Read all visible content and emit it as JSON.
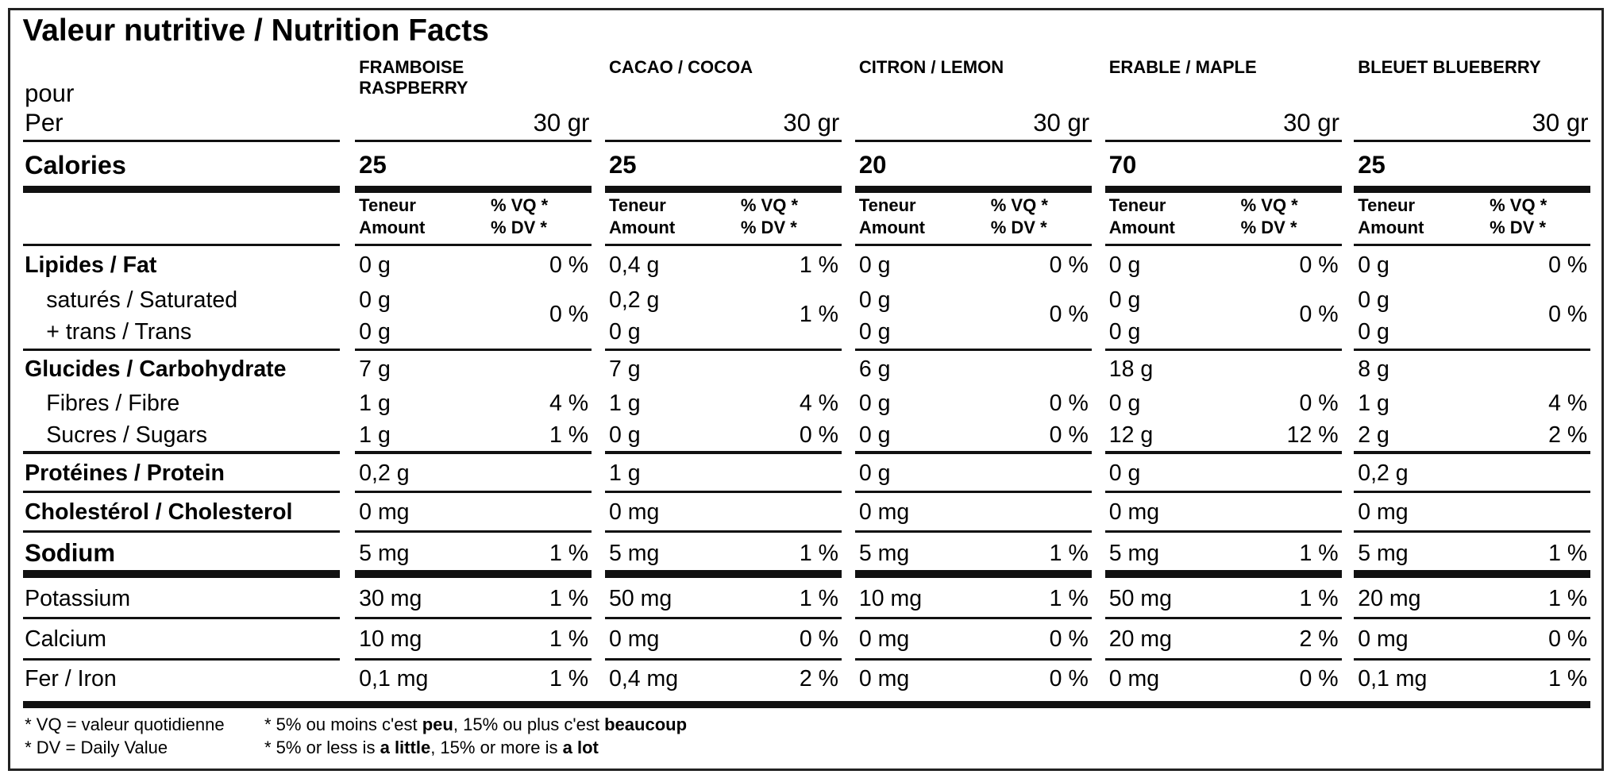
{
  "title": "Valeur nutritive / Nutrition Facts",
  "serving_label": [
    "pour",
    "Per"
  ],
  "calories_label": "Calories",
  "column_header": {
    "amount": [
      "Teneur",
      "Amount"
    ],
    "dv": [
      "% VQ *",
      "% DV *"
    ]
  },
  "columns": [
    {
      "name": [
        "FRAMBOISE",
        "RASPBERRY"
      ],
      "serving_size": "30 gr",
      "calories": "25"
    },
    {
      "name": [
        "CACAO / COCOA"
      ],
      "serving_size": "30 gr",
      "calories": "25"
    },
    {
      "name": [
        "CITRON / LEMON"
      ],
      "serving_size": "30 gr",
      "calories": "20"
    },
    {
      "name": [
        "ERABLE / MAPLE"
      ],
      "serving_size": "30 gr",
      "calories": "70"
    },
    {
      "name": [
        "BLEUET BLUEBERRY"
      ],
      "serving_size": "30 gr",
      "calories": "25"
    }
  ],
  "rows": [
    {
      "label": [
        "Lipides / Fat"
      ],
      "cells": [
        {
          "amount": [
            "0 g"
          ],
          "dv": "0 %"
        },
        {
          "amount": [
            "0,4 g"
          ],
          "dv": "1 %"
        },
        {
          "amount": [
            "0 g"
          ],
          "dv": "0 %"
        },
        {
          "amount": [
            "0 g"
          ],
          "dv": "0 %"
        },
        {
          "amount": [
            "0 g"
          ],
          "dv": "0 %"
        }
      ]
    },
    {
      "label": [
        "saturés / Saturated",
        "+ trans / Trans"
      ],
      "cells": [
        {
          "amount": [
            "0 g",
            "0 g"
          ],
          "dv": "0 %"
        },
        {
          "amount": [
            "0,2 g",
            "0 g"
          ],
          "dv": "1 %"
        },
        {
          "amount": [
            "0 g",
            "0 g"
          ],
          "dv": "0 %"
        },
        {
          "amount": [
            "0 g",
            "0 g"
          ],
          "dv": "0 %"
        },
        {
          "amount": [
            "0 g",
            "0 g"
          ],
          "dv": "0 %"
        }
      ]
    },
    {
      "label": [
        "Glucides / Carbohydrate"
      ],
      "cells": [
        {
          "amount": [
            "7 g"
          ]
        },
        {
          "amount": [
            "7 g"
          ]
        },
        {
          "amount": [
            "6 g"
          ]
        },
        {
          "amount": [
            "18 g"
          ]
        },
        {
          "amount": [
            "8 g"
          ]
        }
      ]
    },
    {
      "label": [
        "Fibres / Fibre"
      ],
      "cells": [
        {
          "amount": [
            "1 g"
          ],
          "dv": "4 %"
        },
        {
          "amount": [
            "1 g"
          ],
          "dv": "4 %"
        },
        {
          "amount": [
            "0 g"
          ],
          "dv": "0 %"
        },
        {
          "amount": [
            "0 g"
          ],
          "dv": "0 %"
        },
        {
          "amount": [
            "1 g"
          ],
          "dv": "4 %"
        }
      ]
    },
    {
      "label": [
        "Sucres / Sugars"
      ],
      "cells": [
        {
          "amount": [
            "1 g"
          ],
          "dv": "1 %"
        },
        {
          "amount": [
            "0 g"
          ],
          "dv": "0 %"
        },
        {
          "amount": [
            "0 g"
          ],
          "dv": "0 %"
        },
        {
          "amount": [
            "12 g"
          ],
          "dv": "12 %"
        },
        {
          "amount": [
            "2 g"
          ],
          "dv": "2 %"
        }
      ]
    },
    {
      "label": [
        "Protéines / Protein"
      ],
      "cells": [
        {
          "amount": [
            "0,2 g"
          ]
        },
        {
          "amount": [
            "1 g"
          ]
        },
        {
          "amount": [
            "0 g"
          ]
        },
        {
          "amount": [
            "0 g"
          ]
        },
        {
          "amount": [
            "0,2 g"
          ]
        }
      ]
    },
    {
      "label": [
        "Cholestérol / Cholesterol"
      ],
      "cells": [
        {
          "amount": [
            "0 mg"
          ]
        },
        {
          "amount": [
            "0 mg"
          ]
        },
        {
          "amount": [
            "0 mg"
          ]
        },
        {
          "amount": [
            "0 mg"
          ]
        },
        {
          "amount": [
            "0 mg"
          ]
        }
      ]
    },
    {
      "label": [
        "Sodium"
      ],
      "cells": [
        {
          "amount": [
            "5 mg"
          ],
          "dv": "1 %"
        },
        {
          "amount": [
            "5 mg"
          ],
          "dv": "1 %"
        },
        {
          "amount": [
            "5 mg"
          ],
          "dv": "1 %"
        },
        {
          "amount": [
            "5 mg"
          ],
          "dv": "1 %"
        },
        {
          "amount": [
            "5 mg"
          ],
          "dv": "1 %"
        }
      ]
    },
    {
      "label": [
        "Potassium"
      ],
      "cells": [
        {
          "amount": [
            "30 mg"
          ],
          "dv": "1 %"
        },
        {
          "amount": [
            "50 mg"
          ],
          "dv": "1 %"
        },
        {
          "amount": [
            "10 mg"
          ],
          "dv": "1 %"
        },
        {
          "amount": [
            "50 mg"
          ],
          "dv": "1 %"
        },
        {
          "amount": [
            "20 mg"
          ],
          "dv": "1 %"
        }
      ]
    },
    {
      "label": [
        "Calcium"
      ],
      "cells": [
        {
          "amount": [
            "10 mg"
          ],
          "dv": "1 %"
        },
        {
          "amount": [
            "0 mg"
          ],
          "dv": "0 %"
        },
        {
          "amount": [
            "0 mg"
          ],
          "dv": "0 %"
        },
        {
          "amount": [
            "20 mg"
          ],
          "dv": "2 %"
        },
        {
          "amount": [
            "0 mg"
          ],
          "dv": "0 %"
        }
      ]
    },
    {
      "label": [
        "Fer / Iron"
      ],
      "cells": [
        {
          "amount": [
            "0,1 mg"
          ],
          "dv": "1 %"
        },
        {
          "amount": [
            "0,4 mg"
          ],
          "dv": "2 %"
        },
        {
          "amount": [
            "0 mg"
          ],
          "dv": "0 %"
        },
        {
          "amount": [
            "0 mg"
          ],
          "dv": "0 %"
        },
        {
          "amount": [
            "0,1 mg"
          ],
          "dv": "1 %"
        }
      ]
    }
  ],
  "footnotes": {
    "left": [
      "* VQ = valeur quotidienne",
      "* DV = Daily Value"
    ],
    "right": [
      [
        "* 5% ou moins c'est ",
        "peu",
        ", 15% ou plus c'est ",
        "beaucoup"
      ],
      [
        "* 5% or less is ",
        "a little",
        ", 15% or more is ",
        "a lot"
      ]
    ]
  }
}
